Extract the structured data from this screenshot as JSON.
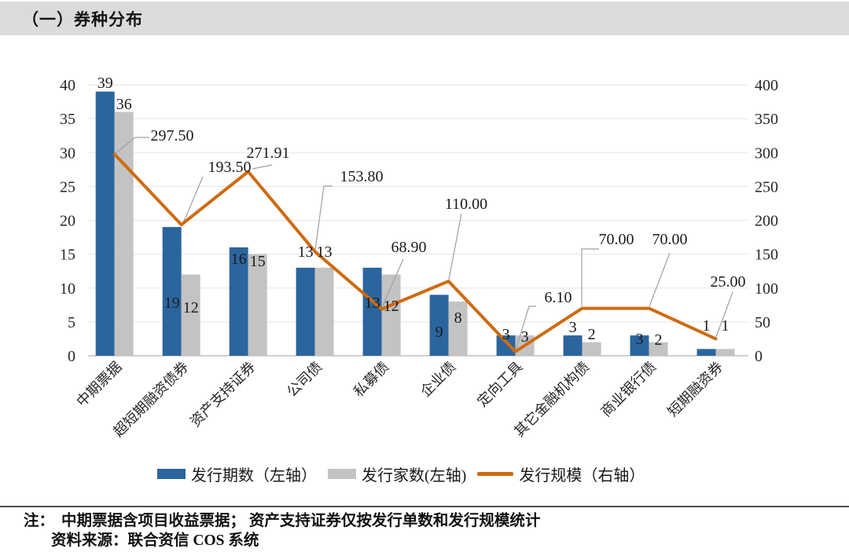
{
  "header": {
    "title": "（一）券种分布"
  },
  "chart_data": {
    "type": "combo_bar_line",
    "categories": [
      "中期票据",
      "超短期融资债券",
      "资产支持证券",
      "公司债",
      "私募债",
      "企业债",
      "定向工具",
      "其它金融机构债",
      "商业银行债",
      "短期融资券"
    ],
    "series": [
      {
        "name": "发行期数（左轴）",
        "type": "bar",
        "axis": "left",
        "color": "#2b659e",
        "values": [
          39,
          19,
          16,
          13,
          13,
          9,
          3,
          3,
          3,
          1
        ]
      },
      {
        "name": "发行家数(左轴)",
        "type": "bar",
        "axis": "left",
        "color": "#c3c3c3",
        "values": [
          36,
          12,
          15,
          13,
          12,
          8,
          3,
          2,
          2,
          1
        ]
      },
      {
        "name": "发行规模（右轴）",
        "type": "line",
        "axis": "right",
        "color": "#ce6b10",
        "values": [
          297.5,
          193.5,
          271.91,
          153.8,
          68.9,
          110.0,
          6.1,
          70.0,
          70.0,
          25.0
        ],
        "value_labels": [
          "297.50",
          "193.50",
          "271.91",
          "153.80",
          "68.90",
          "110.00",
          "6.10",
          "70.00",
          "70.00",
          "25.00"
        ]
      }
    ],
    "left_axis": {
      "min": 0,
      "max": 40,
      "step": 5,
      "ticks": [
        "0",
        "5",
        "10",
        "15",
        "20",
        "25",
        "30",
        "35",
        "40"
      ]
    },
    "right_axis": {
      "min": 0,
      "max": 400,
      "step": 50,
      "ticks": [
        "0",
        "50",
        "100",
        "150",
        "200",
        "250",
        "300",
        "350",
        "400"
      ]
    },
    "grid": true,
    "legend_position": "bottom",
    "colors": {
      "grid": "#e5e5e5",
      "axis": "#bfbfbf",
      "leader": "#a0a0a0"
    }
  },
  "footer": {
    "note_label": "注：",
    "note_text": "中期票据含项目收益票据； 资产支持证券仅按发行单数和发行规模统计",
    "source_text": "资料来源：联合资信 COS 系统"
  }
}
